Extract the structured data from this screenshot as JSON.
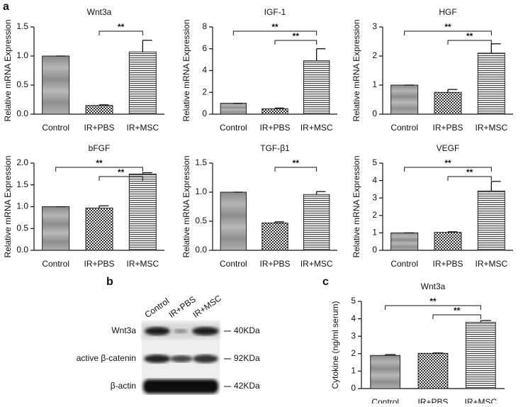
{
  "panel_labels": [
    "a",
    "b",
    "c"
  ],
  "chart_data": [
    {
      "type": "bar",
      "title": "Wnt3a",
      "ylabel": "Relative mRNA Expression",
      "categories": [
        "Control",
        "IR+PBS",
        "IR+MSC"
      ],
      "values": [
        1.0,
        0.15,
        1.07
      ],
      "errors": [
        0,
        0.01,
        0.2
      ],
      "ylim": [
        0,
        1.5
      ],
      "yticks": [
        {
          "value": 0,
          "label": "0.0"
        },
        {
          "value": 0.5,
          "label": "0.5"
        },
        {
          "value": 1,
          "label": "1.0"
        },
        {
          "value": 1.5,
          "label": "1.5"
        }
      ],
      "annotations": [
        {
          "pair": [
            "IR+PBS",
            "IR+MSC"
          ],
          "label": "**"
        }
      ]
    },
    {
      "type": "bar",
      "title": "IGF-1",
      "ylabel": "Relative mRNA Expression",
      "categories": [
        "Control",
        "IR+PBS",
        "IR+MSC"
      ],
      "values": [
        1.0,
        0.5,
        4.9
      ],
      "errors": [
        0,
        0.06,
        1.1
      ],
      "ylim": [
        0,
        8
      ],
      "yticks": [
        0,
        2,
        4,
        6,
        8
      ],
      "annotations": [
        {
          "pair": [
            "Control",
            "IR+MSC"
          ],
          "label": "**"
        },
        {
          "pair": [
            "IR+PBS",
            "IR+MSC"
          ],
          "label": "**"
        }
      ]
    },
    {
      "type": "bar",
      "title": "HGF",
      "ylabel": "Relative mRNA Expression",
      "categories": [
        "Control",
        "IR+PBS",
        "IR+MSC"
      ],
      "values": [
        1.0,
        0.75,
        2.1
      ],
      "errors": [
        0,
        0.1,
        0.32
      ],
      "ylim": [
        0,
        3
      ],
      "yticks": [
        0,
        1,
        2,
        3
      ],
      "annotations": [
        {
          "pair": [
            "Control",
            "IR+MSC"
          ],
          "label": "**"
        },
        {
          "pair": [
            "IR+PBS",
            "IR+MSC"
          ],
          "label": "**"
        }
      ]
    },
    {
      "type": "bar",
      "title": "bFGF",
      "ylabel": "Relative mRNA Expression",
      "categories": [
        "Control",
        "IR+PBS",
        "IR+MSC"
      ],
      "values": [
        1.0,
        0.97,
        1.75
      ],
      "errors": [
        0,
        0.05,
        0.03
      ],
      "ylim": [
        0,
        2
      ],
      "yticks": [
        {
          "value": 0,
          "label": "0.0"
        },
        {
          "value": 0.5,
          "label": "0.5"
        },
        {
          "value": 1,
          "label": "1.0"
        },
        {
          "value": 1.5,
          "label": "1.5"
        },
        {
          "value": 2,
          "label": "2.0"
        }
      ],
      "annotations": [
        {
          "pair": [
            "Control",
            "IR+MSC"
          ],
          "label": "**"
        },
        {
          "pair": [
            "IR+PBS",
            "IR+MSC"
          ],
          "label": "**"
        }
      ]
    },
    {
      "type": "bar",
      "title": "TGF-β1",
      "ylabel": "Relative mRNA Expression",
      "categories": [
        "Control",
        "IR+PBS",
        "IR+MSC"
      ],
      "values": [
        1.0,
        0.47,
        0.96
      ],
      "errors": [
        0,
        0.02,
        0.05
      ],
      "ylim": [
        0,
        1.5
      ],
      "yticks": [
        {
          "value": 0,
          "label": "0.0"
        },
        {
          "value": 0.5,
          "label": "0.5"
        },
        {
          "value": 1,
          "label": "1.0"
        },
        {
          "value": 1.5,
          "label": "1.5"
        }
      ],
      "annotations": [
        {
          "pair": [
            "IR+PBS",
            "IR+MSC"
          ],
          "label": "**"
        }
      ]
    },
    {
      "type": "bar",
      "title": "VEGF",
      "ylabel": "Relative mRNA Expression",
      "categories": [
        "Control",
        "IR+PBS",
        "IR+MSC"
      ],
      "values": [
        1.0,
        1.03,
        3.4
      ],
      "errors": [
        0,
        0.03,
        0.55
      ],
      "ylim": [
        0,
        5
      ],
      "yticks": [
        0,
        1,
        2,
        3,
        4,
        5
      ],
      "annotations": [
        {
          "pair": [
            "Control",
            "IR+MSC"
          ],
          "label": "**"
        },
        {
          "pair": [
            "IR+PBS",
            "IR+MSC"
          ],
          "label": "**"
        }
      ]
    },
    {
      "type": "bar",
      "title": "Wnt3a",
      "ylabel": "Cytokine (ng/ml serum)",
      "categories": [
        "Control",
        "IR+PBS",
        "IR+MSC"
      ],
      "values": [
        1.9,
        2.02,
        3.8
      ],
      "errors": [
        0.05,
        0.02,
        0.1
      ],
      "ylim": [
        0,
        5
      ],
      "yticks": [
        0,
        1,
        2,
        3,
        4,
        5
      ],
      "annotations": [
        {
          "pair": [
            "Control",
            "IR+MSC"
          ],
          "label": "**"
        },
        {
          "pair": [
            "IR+PBS",
            "IR+MSC"
          ],
          "label": "**"
        }
      ]
    }
  ],
  "blot": {
    "columns": [
      "Control",
      "IR+PBS",
      "IR+MSC"
    ],
    "rows": [
      {
        "label": "Wnt3a",
        "size": "40KDa"
      },
      {
        "label": "active β-catenin",
        "size": "92KDa"
      },
      {
        "label": "β-actin",
        "size": "42KDa"
      }
    ]
  }
}
